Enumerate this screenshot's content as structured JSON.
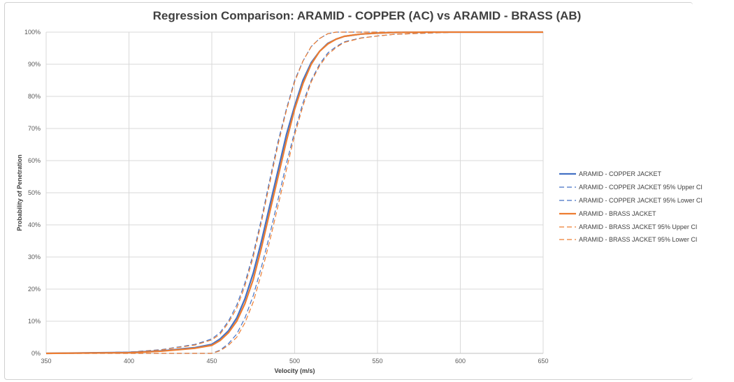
{
  "chart_data": {
    "type": "line",
    "title": "Regression Comparison: ARAMID - COPPER (AC) vs ARAMID - BRASS (AB)",
    "xlabel": "Velocity (m/s)",
    "ylabel": "Probability of Penetration",
    "xlim": [
      350,
      650
    ],
    "ylim": [
      0,
      1
    ],
    "x_ticks": [
      350,
      400,
      450,
      500,
      550,
      600,
      650
    ],
    "x_tick_labels": [
      "350",
      "400",
      "450",
      "500",
      "550",
      "600",
      "650"
    ],
    "y_ticks": [
      0,
      0.1,
      0.2,
      0.3,
      0.4,
      0.5,
      0.6,
      0.7,
      0.8,
      0.9,
      1.0
    ],
    "y_tick_labels": [
      "0%",
      "10%",
      "20%",
      "30%",
      "40%",
      "50%",
      "60%",
      "70%",
      "80%",
      "90%",
      "100%"
    ],
    "grid": true,
    "legend_position": "right",
    "x": [
      350,
      400,
      420,
      440,
      450,
      455,
      460,
      465,
      470,
      475,
      480,
      485,
      490,
      495,
      500,
      505,
      510,
      515,
      520,
      525,
      530,
      540,
      550,
      560,
      580,
      600,
      650
    ],
    "series": [
      {
        "name": "ARAMID - COPPER JACKET",
        "color": "#4472c4",
        "style": "solid",
        "values": [
          0,
          0.003,
          0.008,
          0.018,
          0.028,
          0.045,
          0.07,
          0.11,
          0.17,
          0.25,
          0.35,
          0.46,
          0.57,
          0.68,
          0.77,
          0.85,
          0.905,
          0.94,
          0.965,
          0.978,
          0.987,
          0.994,
          0.997,
          0.999,
          1.0,
          1.0,
          1.0
        ]
      },
      {
        "name": "ARAMID - COPPER JACKET 95% Upper CI",
        "color": "#4472c4",
        "style": "dashed",
        "values": [
          0,
          0.004,
          0.012,
          0.028,
          0.045,
          0.065,
          0.1,
          0.15,
          0.22,
          0.31,
          0.42,
          0.54,
          0.66,
          0.76,
          0.85,
          0.91,
          0.955,
          0.98,
          0.995,
          1.0,
          1.0,
          1.0,
          1.0,
          1.0,
          1.0,
          1.0,
          1.0
        ]
      },
      {
        "name": "ARAMID - COPPER JACKET 95% Lower CI",
        "color": "#4472c4",
        "style": "dashed",
        "values": [
          0,
          0,
          0,
          0,
          0,
          0.01,
          0.03,
          0.06,
          0.11,
          0.18,
          0.27,
          0.37,
          0.48,
          0.59,
          0.69,
          0.78,
          0.85,
          0.9,
          0.935,
          0.955,
          0.97,
          0.982,
          0.988,
          0.993,
          0.997,
          1.0,
          1.0
        ]
      },
      {
        "name": "ARAMID - BRASS JACKET",
        "color": "#ed7d31",
        "style": "solid",
        "values": [
          0,
          0.002,
          0.007,
          0.016,
          0.025,
          0.04,
          0.064,
          0.1,
          0.155,
          0.23,
          0.33,
          0.44,
          0.55,
          0.66,
          0.76,
          0.84,
          0.9,
          0.94,
          0.963,
          0.978,
          0.987,
          0.994,
          0.997,
          0.999,
          1.0,
          1.0,
          1.0
        ]
      },
      {
        "name": "ARAMID - BRASS JACKET 95% Upper CI",
        "color": "#ed7d31",
        "style": "dashed",
        "values": [
          0,
          0.004,
          0.011,
          0.026,
          0.042,
          0.06,
          0.095,
          0.14,
          0.21,
          0.3,
          0.41,
          0.53,
          0.65,
          0.755,
          0.845,
          0.91,
          0.955,
          0.98,
          0.995,
          1.0,
          1.0,
          1.0,
          1.0,
          1.0,
          1.0,
          1.0,
          1.0
        ]
      },
      {
        "name": "ARAMID - BRASS JACKET 95% Lower CI",
        "color": "#ed7d31",
        "style": "dashed",
        "values": [
          0,
          0,
          0,
          0,
          0,
          0.008,
          0.025,
          0.05,
          0.095,
          0.16,
          0.25,
          0.35,
          0.46,
          0.57,
          0.68,
          0.77,
          0.845,
          0.895,
          0.93,
          0.952,
          0.968,
          0.981,
          0.988,
          0.993,
          0.997,
          1.0,
          1.0
        ]
      }
    ]
  }
}
